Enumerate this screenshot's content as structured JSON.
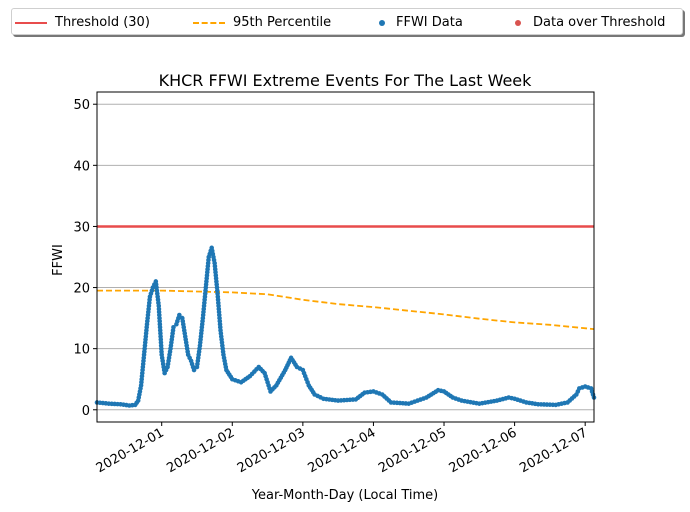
{
  "chart_data": {
    "type": "scatter",
    "title": "KHCR FFWI Extreme Events For The Last Week",
    "xlabel": "Year-Month-Day (Local Time)",
    "ylabel": "FFWI",
    "ylim": [
      -2,
      52
    ],
    "xlim": [
      "2020-11-30T02:00",
      "2020-12-07T03:00"
    ],
    "yticks": [
      0,
      10,
      20,
      30,
      40,
      50
    ],
    "xticks": [
      "2020-12-01",
      "2020-12-02",
      "2020-12-03",
      "2020-12-04",
      "2020-12-05",
      "2020-12-06",
      "2020-12-07"
    ],
    "grid": "y-axis",
    "legend": {
      "placement": "top, outside plot",
      "entries": [
        "Threshold (30)",
        "95th Percentile",
        "FFWI Data",
        "Data over Threshold"
      ]
    },
    "threshold": {
      "name": "Threshold (30)",
      "value": 30,
      "color": "#e84c4c"
    },
    "percentile_95": {
      "name": "95th Percentile",
      "color": "#ffa500",
      "points": [
        [
          "2020-11-30T02:00",
          19.5
        ],
        [
          "2020-12-01T00:00",
          19.5
        ],
        [
          "2020-12-02T00:00",
          19.2
        ],
        [
          "2020-12-02T12:00",
          18.9
        ],
        [
          "2020-12-03T00:00",
          18.0
        ],
        [
          "2020-12-03T12:00",
          17.3
        ],
        [
          "2020-12-04T00:00",
          16.8
        ],
        [
          "2020-12-05T00:00",
          15.6
        ],
        [
          "2020-12-05T12:00",
          14.9
        ],
        [
          "2020-12-06T00:00",
          14.3
        ],
        [
          "2020-12-06T12:00",
          13.9
        ],
        [
          "2020-12-07T03:00",
          13.2
        ]
      ]
    },
    "series": [
      {
        "name": "FFWI Data",
        "color": "#1f77b4",
        "points": [
          [
            "2020-11-30T02:00",
            1.2
          ],
          [
            "2020-11-30T06:00",
            1.0
          ],
          [
            "2020-11-30T10:00",
            0.9
          ],
          [
            "2020-11-30T13:00",
            0.7
          ],
          [
            "2020-11-30T15:00",
            0.8
          ],
          [
            "2020-11-30T16:00",
            1.5
          ],
          [
            "2020-11-30T17:00",
            4.0
          ],
          [
            "2020-11-30T18:00",
            9.0
          ],
          [
            "2020-11-30T19:00",
            14.0
          ],
          [
            "2020-11-30T20:00",
            18.5
          ],
          [
            "2020-11-30T21:00",
            20.0
          ],
          [
            "2020-11-30T22:00",
            21.0
          ],
          [
            "2020-11-30T23:00",
            17.0
          ],
          [
            "2020-12-01T00:00",
            9.0
          ],
          [
            "2020-12-01T01:00",
            6.0
          ],
          [
            "2020-12-01T02:00",
            7.0
          ],
          [
            "2020-12-01T03:00",
            10.0
          ],
          [
            "2020-12-01T04:00",
            13.5
          ],
          [
            "2020-12-01T05:00",
            14.0
          ],
          [
            "2020-12-01T06:00",
            15.5
          ],
          [
            "2020-12-01T07:00",
            15.0
          ],
          [
            "2020-12-01T08:00",
            12.0
          ],
          [
            "2020-12-01T09:00",
            9.0
          ],
          [
            "2020-12-01T10:00",
            8.0
          ],
          [
            "2020-12-01T11:00",
            6.5
          ],
          [
            "2020-12-01T12:00",
            7.0
          ],
          [
            "2020-12-01T13:00",
            10.5
          ],
          [
            "2020-12-01T14:00",
            15.0
          ],
          [
            "2020-12-01T15:00",
            20.0
          ],
          [
            "2020-12-01T16:00",
            25.0
          ],
          [
            "2020-12-01T17:00",
            26.5
          ],
          [
            "2020-12-01T18:00",
            24.0
          ],
          [
            "2020-12-01T19:00",
            19.0
          ],
          [
            "2020-12-01T20:00",
            13.0
          ],
          [
            "2020-12-01T21:00",
            9.0
          ],
          [
            "2020-12-01T22:00",
            6.5
          ],
          [
            "2020-12-02T00:00",
            5.0
          ],
          [
            "2020-12-02T03:00",
            4.5
          ],
          [
            "2020-12-02T06:00",
            5.5
          ],
          [
            "2020-12-02T09:00",
            7.0
          ],
          [
            "2020-12-02T11:00",
            6.0
          ],
          [
            "2020-12-02T13:00",
            3.0
          ],
          [
            "2020-12-02T15:00",
            4.0
          ],
          [
            "2020-12-02T18:00",
            6.5
          ],
          [
            "2020-12-02T20:00",
            8.5
          ],
          [
            "2020-12-02T22:00",
            7.0
          ],
          [
            "2020-12-03T00:00",
            6.5
          ],
          [
            "2020-12-03T02:00",
            4.0
          ],
          [
            "2020-12-03T04:00",
            2.5
          ],
          [
            "2020-12-03T07:00",
            1.8
          ],
          [
            "2020-12-03T12:00",
            1.5
          ],
          [
            "2020-12-03T18:00",
            1.7
          ],
          [
            "2020-12-03T21:00",
            2.8
          ],
          [
            "2020-12-04T00:00",
            3.0
          ],
          [
            "2020-12-04T03:00",
            2.5
          ],
          [
            "2020-12-04T06:00",
            1.2
          ],
          [
            "2020-12-04T12:00",
            1.0
          ],
          [
            "2020-12-04T18:00",
            2.0
          ],
          [
            "2020-12-04T22:00",
            3.2
          ],
          [
            "2020-12-05T00:00",
            3.0
          ],
          [
            "2020-12-05T03:00",
            2.0
          ],
          [
            "2020-12-05T06:00",
            1.5
          ],
          [
            "2020-12-05T12:00",
            1.0
          ],
          [
            "2020-12-05T18:00",
            1.5
          ],
          [
            "2020-12-05T22:00",
            2.0
          ],
          [
            "2020-12-06T00:00",
            1.8
          ],
          [
            "2020-12-06T04:00",
            1.2
          ],
          [
            "2020-12-06T08:00",
            0.9
          ],
          [
            "2020-12-06T14:00",
            0.8
          ],
          [
            "2020-12-06T18:00",
            1.2
          ],
          [
            "2020-12-06T21:00",
            2.5
          ],
          [
            "2020-12-06T22:00",
            3.5
          ],
          [
            "2020-12-07T00:00",
            3.8
          ],
          [
            "2020-12-07T02:00",
            3.5
          ],
          [
            "2020-12-07T03:00",
            2.0
          ]
        ]
      },
      {
        "name": "Data over Threshold",
        "color": "#d9534f",
        "points": []
      }
    ]
  }
}
